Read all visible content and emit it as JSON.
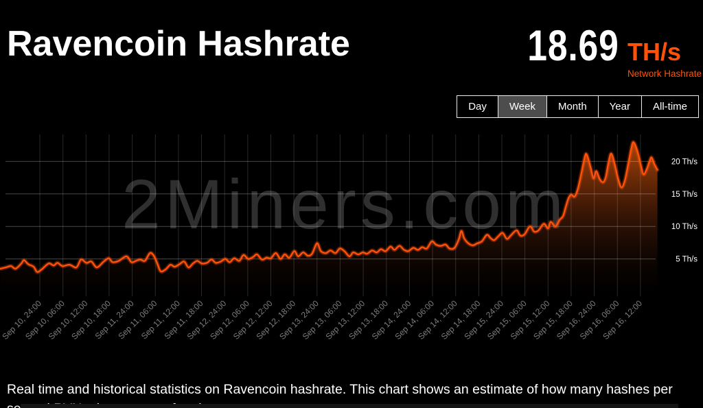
{
  "header": {
    "title": "Ravencoin Hashrate",
    "stat_value": "18.69",
    "stat_unit": "TH/s",
    "stat_label": "Network Hashrate"
  },
  "range_tabs": {
    "items": [
      {
        "label": "Day",
        "active": false
      },
      {
        "label": "Week",
        "active": true
      },
      {
        "label": "Month",
        "active": false
      },
      {
        "label": "Year",
        "active": false
      },
      {
        "label": "All-time",
        "active": false
      }
    ]
  },
  "description": "Real time and historical statistics on Ravencoin hashrate. This chart shows an estimate of how many hashes per second RVN miners are performing.",
  "colors": {
    "accent_orange": "#ff5208",
    "background": "#000000",
    "active_tab_bg": "#4d4d4d",
    "watermark_gray": "#2f2f2f",
    "x_label_gray": "#7d7d7d"
  },
  "chart_data": {
    "type": "area",
    "series_name": "Network Hashrate",
    "unit": "Th/s",
    "watermark": "2Miners.com",
    "ylim": [
      0,
      25
    ],
    "y_axis_side": "right",
    "grid": true,
    "x_labels_rotated_deg": -45,
    "y_ticks": [
      5,
      10,
      15,
      20
    ],
    "y_tick_labels": [
      "5 Th/s",
      "10 Th/s",
      "15 Th/s",
      "20 Th/s"
    ],
    "x_tick_hours_step": 6,
    "x_tick_labels": [
      "Sep 10, 24:00",
      "Sep 10, 06:00",
      "Sep 10, 12:00",
      "Sep 10, 18:00",
      "Sep 11, 24:00",
      "Sep 11, 06:00",
      "Sep 11, 12:00",
      "Sep 11, 18:00",
      "Sep 12, 24:00",
      "Sep 12, 06:00",
      "Sep 12, 12:00",
      "Sep 12, 18:00",
      "Sep 13, 24:00",
      "Sep 13, 06:00",
      "Sep 13, 12:00",
      "Sep 13, 18:00",
      "Sep 14, 24:00",
      "Sep 14, 06:00",
      "Sep 14, 12:00",
      "Sep 14, 18:00",
      "Sep 15, 24:00",
      "Sep 15, 06:00",
      "Sep 15, 12:00",
      "Sep 15, 18:00",
      "Sep 16, 24:00",
      "Sep 16, 06:00",
      "Sep 16, 12:00"
    ],
    "points_hours_value": [
      [
        -10.2,
        3.5
      ],
      [
        -8.8,
        3.7
      ],
      [
        -7.5,
        3.9
      ],
      [
        -6.3,
        3.5
      ],
      [
        -4.8,
        4.3
      ],
      [
        -4.1,
        4.8
      ],
      [
        -3.0,
        4.2
      ],
      [
        -1.6,
        3.8
      ],
      [
        -0.7,
        3.0
      ],
      [
        0.5,
        3.4
      ],
      [
        2.3,
        4.3
      ],
      [
        3.6,
        4.0
      ],
      [
        4.6,
        4.4
      ],
      [
        5.9,
        3.9
      ],
      [
        7.7,
        4.1
      ],
      [
        9.5,
        3.7
      ],
      [
        10.7,
        4.9
      ],
      [
        12.1,
        4.4
      ],
      [
        13.4,
        4.6
      ],
      [
        14.8,
        3.7
      ],
      [
        16.6,
        4.6
      ],
      [
        17.9,
        5.1
      ],
      [
        18.9,
        4.5
      ],
      [
        20.5,
        4.7
      ],
      [
        22.5,
        5.4
      ],
      [
        23.8,
        4.5
      ],
      [
        25.0,
        4.7
      ],
      [
        26.1,
        4.9
      ],
      [
        27.3,
        4.7
      ],
      [
        28.6,
        5.9
      ],
      [
        29.6,
        5.5
      ],
      [
        30.5,
        4.3
      ],
      [
        31.4,
        3.1
      ],
      [
        32.7,
        3.4
      ],
      [
        33.9,
        4.1
      ],
      [
        35.0,
        3.8
      ],
      [
        36.3,
        4.2
      ],
      [
        37.5,
        4.6
      ],
      [
        38.6,
        3.7
      ],
      [
        39.8,
        4.3
      ],
      [
        40.9,
        4.7
      ],
      [
        42.1,
        4.3
      ],
      [
        43.4,
        4.4
      ],
      [
        44.6,
        4.9
      ],
      [
        45.7,
        4.4
      ],
      [
        47.0,
        4.6
      ],
      [
        48.2,
        5.0
      ],
      [
        49.3,
        4.5
      ],
      [
        50.5,
        5.1
      ],
      [
        51.8,
        4.7
      ],
      [
        52.9,
        5.6
      ],
      [
        54.1,
        5.0
      ],
      [
        55.4,
        5.3
      ],
      [
        56.4,
        5.7
      ],
      [
        57.7,
        4.9
      ],
      [
        58.9,
        5.2
      ],
      [
        60.0,
        5.1
      ],
      [
        61.3,
        5.9
      ],
      [
        62.5,
        5.0
      ],
      [
        63.6,
        5.7
      ],
      [
        64.8,
        5.2
      ],
      [
        66.1,
        6.2
      ],
      [
        67.1,
        5.4
      ],
      [
        68.4,
        6.0
      ],
      [
        69.6,
        5.5
      ],
      [
        70.7,
        5.8
      ],
      [
        72.0,
        7.4
      ],
      [
        73.0,
        6.2
      ],
      [
        74.3,
        5.9
      ],
      [
        75.5,
        6.3
      ],
      [
        76.8,
        5.9
      ],
      [
        77.9,
        6.6
      ],
      [
        79.1,
        6.2
      ],
      [
        80.4,
        5.4
      ],
      [
        81.4,
        6.0
      ],
      [
        82.7,
        5.7
      ],
      [
        83.9,
        6.0
      ],
      [
        85.0,
        5.8
      ],
      [
        86.3,
        6.3
      ],
      [
        87.5,
        6.0
      ],
      [
        88.6,
        6.5
      ],
      [
        89.8,
        6.2
      ],
      [
        91.1,
        6.9
      ],
      [
        92.1,
        6.4
      ],
      [
        93.4,
        7.0
      ],
      [
        94.6,
        6.4
      ],
      [
        95.7,
        6.2
      ],
      [
        97.0,
        6.7
      ],
      [
        98.2,
        6.4
      ],
      [
        99.3,
        6.8
      ],
      [
        100.5,
        6.6
      ],
      [
        101.8,
        7.7
      ],
      [
        102.9,
        7.2
      ],
      [
        104.1,
        7.0
      ],
      [
        105.4,
        7.2
      ],
      [
        106.4,
        6.6
      ],
      [
        107.7,
        6.7
      ],
      [
        108.8,
        8.0
      ],
      [
        109.5,
        9.3
      ],
      [
        110.2,
        8.2
      ],
      [
        111.3,
        7.4
      ],
      [
        112.5,
        7.1
      ],
      [
        113.6,
        7.4
      ],
      [
        114.8,
        7.7
      ],
      [
        116.1,
        8.7
      ],
      [
        117.1,
        8.2
      ],
      [
        118.0,
        7.9
      ],
      [
        119.1,
        8.5
      ],
      [
        120.2,
        9.0
      ],
      [
        121.3,
        8.1
      ],
      [
        122.3,
        8.6
      ],
      [
        123.8,
        9.4
      ],
      [
        124.8,
        8.6
      ],
      [
        125.9,
        8.8
      ],
      [
        127.3,
        10.0
      ],
      [
        128.4,
        9.2
      ],
      [
        129.5,
        9.4
      ],
      [
        130.9,
        10.4
      ],
      [
        132.0,
        9.7
      ],
      [
        132.7,
        10.7
      ],
      [
        133.9,
        10.0
      ],
      [
        135.0,
        11.0
      ],
      [
        135.9,
        11.6
      ],
      [
        136.6,
        13.0
      ],
      [
        137.3,
        14.3
      ],
      [
        138.0,
        14.9
      ],
      [
        138.9,
        14.6
      ],
      [
        139.8,
        15.9
      ],
      [
        140.7,
        18.3
      ],
      [
        141.6,
        20.8
      ],
      [
        142.1,
        21.0
      ],
      [
        143.0,
        19.2
      ],
      [
        143.8,
        17.4
      ],
      [
        144.5,
        18.5
      ],
      [
        145.4,
        17.3
      ],
      [
        146.3,
        16.8
      ],
      [
        147.0,
        17.6
      ],
      [
        147.7,
        19.8
      ],
      [
        148.4,
        21.2
      ],
      [
        149.3,
        19.6
      ],
      [
        150.2,
        17.3
      ],
      [
        151.1,
        16.0
      ],
      [
        152.0,
        17.2
      ],
      [
        152.9,
        19.8
      ],
      [
        153.8,
        22.5
      ],
      [
        154.3,
        22.9
      ],
      [
        155.2,
        21.6
      ],
      [
        156.1,
        19.4
      ],
      [
        156.8,
        18.0
      ],
      [
        157.7,
        18.9
      ],
      [
        158.4,
        20.1
      ],
      [
        158.9,
        20.6
      ],
      [
        159.6,
        19.6
      ],
      [
        160.4,
        18.7
      ]
    ]
  }
}
